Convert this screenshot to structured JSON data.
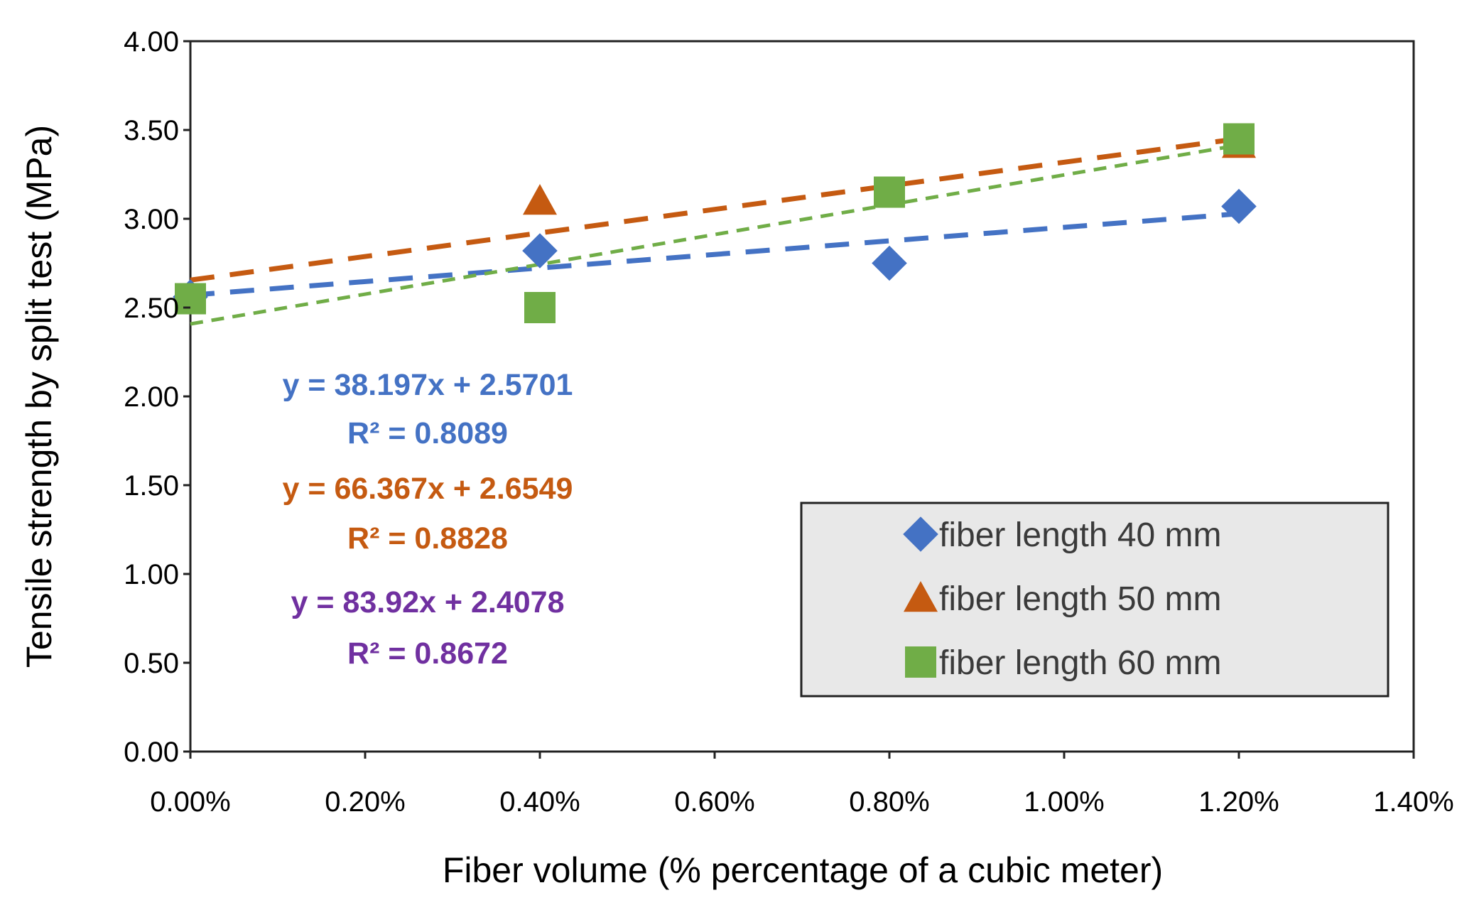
{
  "chart_data": {
    "type": "scatter",
    "xlabel": "Fiber volume (% percentage of a cubic meter)",
    "ylabel": "Tensile strength by split test (MPa)",
    "xlim": [
      0,
      0.014
    ],
    "ylim": [
      0,
      4.0
    ],
    "x_ticks": [
      "0.00%",
      "0.20%",
      "0.40%",
      "0.60%",
      "0.80%",
      "1.00%",
      "1.20%",
      "1.40%"
    ],
    "y_ticks": [
      "0.00",
      "0.50",
      "1.00",
      "1.50",
      "2.00",
      "2.50",
      "3.00",
      "3.50",
      "4.00"
    ],
    "series": [
      {
        "name": "fiber length 40 mm",
        "marker": "diamond",
        "color": "#4472C4",
        "x": [
          0.0,
          0.004,
          0.008,
          0.012
        ],
        "y": [
          2.56,
          2.82,
          2.75,
          3.07
        ],
        "trend": {
          "slope": 38.197,
          "intercept": 2.5701
        },
        "equation": "y = 38.197x + 2.5701",
        "r2": "R² = 0.8089"
      },
      {
        "name": "fiber length 50 mm",
        "marker": "triangle",
        "color": "#C55A11",
        "x": [
          0.004,
          0.012
        ],
        "y": [
          3.1,
          3.42
        ],
        "trend": {
          "slope": 66.367,
          "intercept": 2.6549
        },
        "equation": "y = 66.367x + 2.6549",
        "r2": "R² = 0.8828"
      },
      {
        "name": "fiber length 60 mm",
        "marker": "square",
        "color": "#70AD47",
        "x": [
          0.0,
          0.004,
          0.008,
          0.012
        ],
        "y": [
          2.55,
          2.5,
          3.15,
          3.45
        ],
        "trend": {
          "slope": 83.92,
          "intercept": 2.4078
        },
        "equation": "y = 83.92x + 2.4078",
        "r2": "R² = 0.8672",
        "label_color": "#7030A0"
      }
    ],
    "legend_position": "bottom-right",
    "grid": false
  }
}
